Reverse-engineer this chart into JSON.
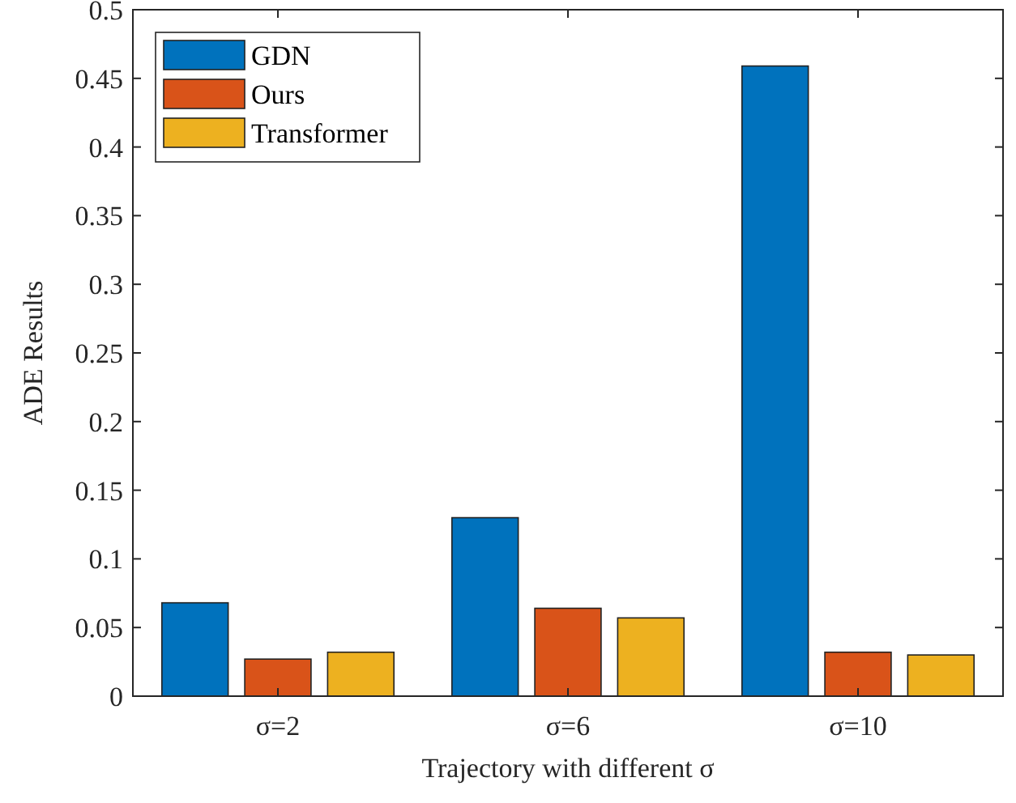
{
  "chart_data": {
    "type": "bar",
    "xlabel": "Trajectory with different σ",
    "ylabel": "ADE Results",
    "categories": [
      "σ=2",
      "σ=6",
      "σ=10"
    ],
    "series": [
      {
        "name": "GDN",
        "color": "#0072bd",
        "values": [
          0.068,
          0.13,
          0.459
        ]
      },
      {
        "name": "Ours",
        "color": "#d95319",
        "values": [
          0.027,
          0.064,
          0.032
        ]
      },
      {
        "name": "Transformer",
        "color": "#edb120",
        "values": [
          0.032,
          0.057,
          0.03
        ]
      }
    ],
    "ylim": [
      0,
      0.5
    ],
    "yticks": [
      0,
      0.05,
      0.1,
      0.15,
      0.2,
      0.25,
      0.3,
      0.35,
      0.4,
      0.45,
      0.5
    ],
    "grid": false,
    "legend": "top left"
  }
}
